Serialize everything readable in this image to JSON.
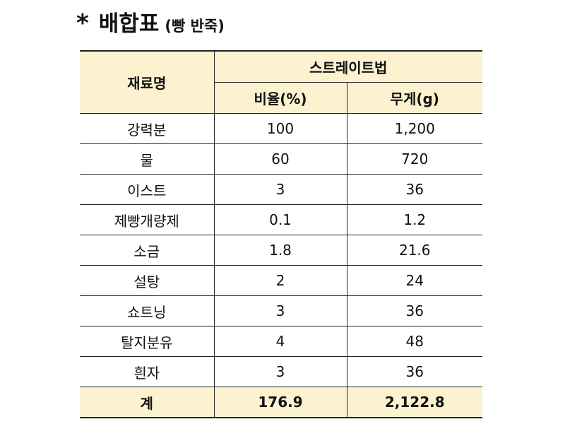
{
  "title": {
    "marker": "*",
    "main": "배합표",
    "sub": "(빵 반죽)"
  },
  "table": {
    "header": {
      "ingredient": "재료명",
      "method": "스트레이트법",
      "ratio": "비율(%)",
      "weight": "무게(g)"
    },
    "rows": [
      {
        "name": "강력분",
        "ratio": "100",
        "weight": "1,200"
      },
      {
        "name": "물",
        "ratio": "60",
        "weight": "720"
      },
      {
        "name": "이스트",
        "ratio": "3",
        "weight": "36"
      },
      {
        "name": "제빵개량제",
        "ratio": "0.1",
        "weight": "1.2"
      },
      {
        "name": "소금",
        "ratio": "1.8",
        "weight": "21.6"
      },
      {
        "name": "설탕",
        "ratio": "2",
        "weight": "24"
      },
      {
        "name": "쇼트닝",
        "ratio": "3",
        "weight": "36"
      },
      {
        "name": "탈지분유",
        "ratio": "4",
        "weight": "48"
      },
      {
        "name": "흰자",
        "ratio": "3",
        "weight": "36"
      }
    ],
    "total": {
      "name": "계",
      "ratio": "176.9",
      "weight": "2,122.8"
    }
  },
  "colors": {
    "header_bg": "#fdf2cf",
    "border": "#222222"
  }
}
